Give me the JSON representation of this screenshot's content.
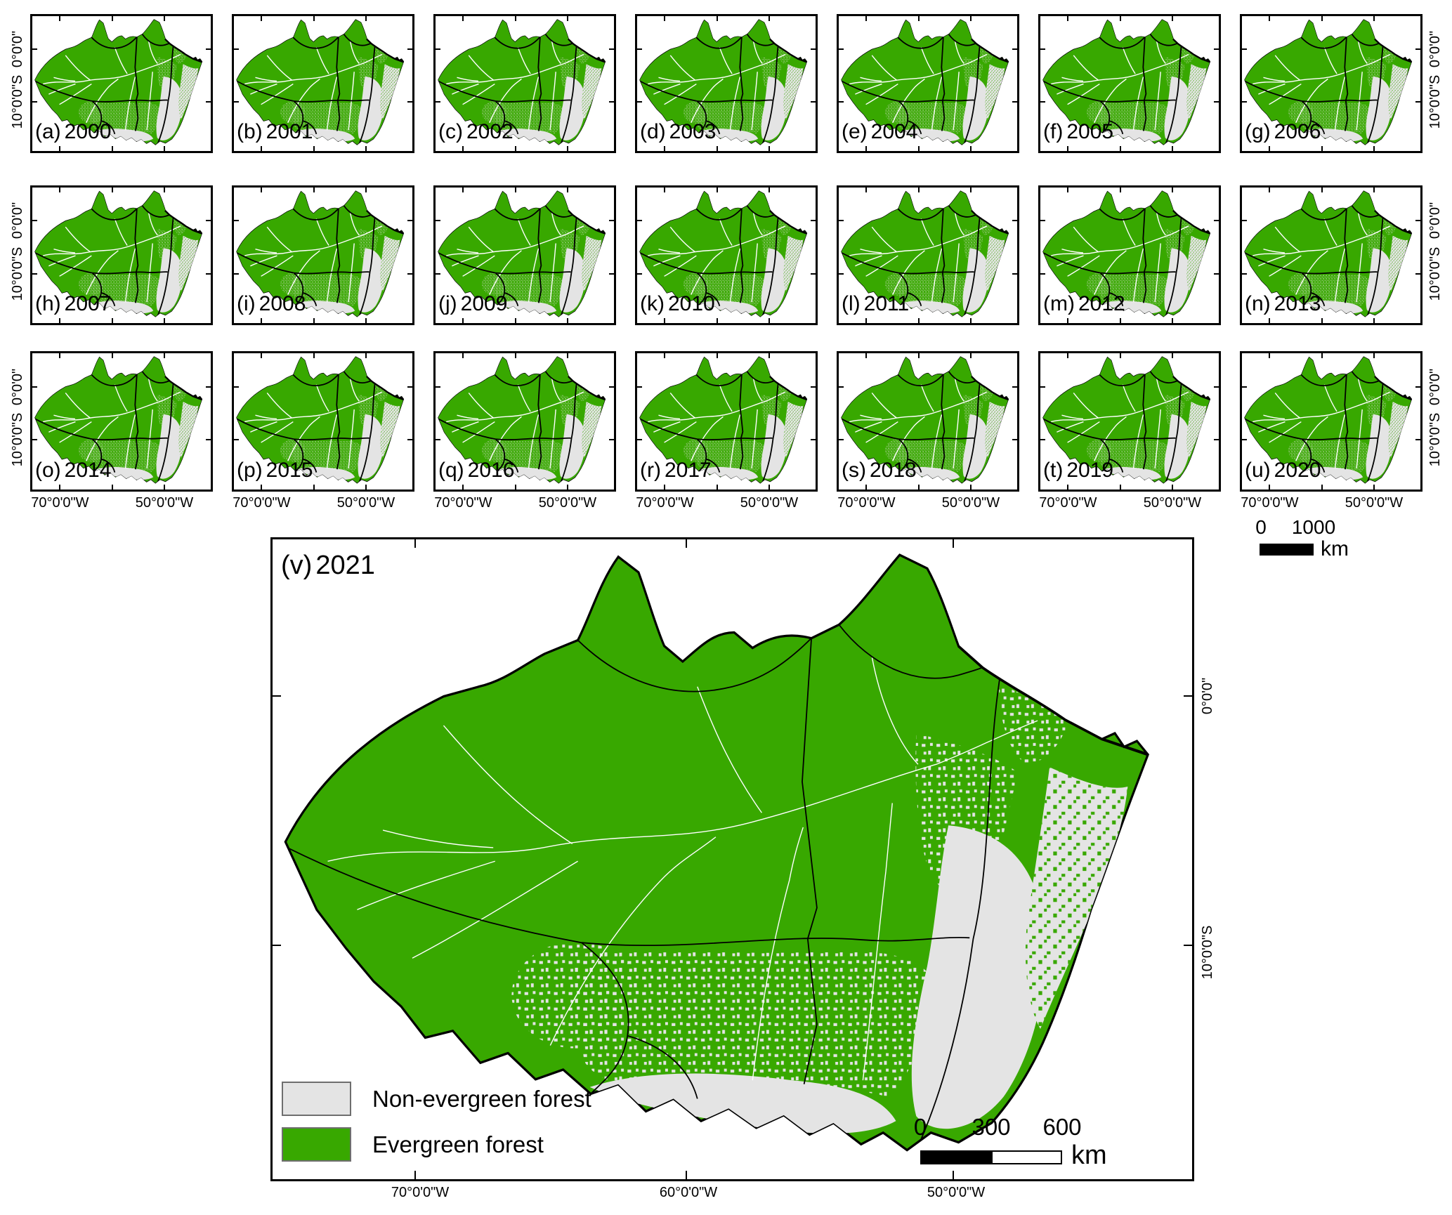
{
  "figure": {
    "panels": [
      {
        "letter": "(a)",
        "year": "2000"
      },
      {
        "letter": "(b)",
        "year": "2001"
      },
      {
        "letter": "(c)",
        "year": "2002"
      },
      {
        "letter": "(d)",
        "year": "2003"
      },
      {
        "letter": "(e)",
        "year": "2004"
      },
      {
        "letter": "(f)",
        "year": "2005"
      },
      {
        "letter": "(g)",
        "year": "2006"
      },
      {
        "letter": "(h)",
        "year": "2007"
      },
      {
        "letter": "(i)",
        "year": "2008"
      },
      {
        "letter": "(j)",
        "year": "2009"
      },
      {
        "letter": "(k)",
        "year": "2010"
      },
      {
        "letter": "(l)",
        "year": "2011"
      },
      {
        "letter": "(m)",
        "year": "2012"
      },
      {
        "letter": "(n)",
        "year": "2013"
      },
      {
        "letter": "(o)",
        "year": "2014"
      },
      {
        "letter": "(p)",
        "year": "2015"
      },
      {
        "letter": "(q)",
        "year": "2016"
      },
      {
        "letter": "(r)",
        "year": "2017"
      },
      {
        "letter": "(s)",
        "year": "2018"
      },
      {
        "letter": "(t)",
        "year": "2019"
      },
      {
        "letter": "(u)",
        "year": "2020"
      }
    ],
    "main_panel": {
      "letter": "(v)",
      "year": "2021"
    },
    "axis": {
      "lat_top": "0°0'0\"",
      "lat_bottom": "10°0'0\"S",
      "lon_left": "70°0'0\"W",
      "lon_mid": "60°0'0\"W",
      "lon_right": "50°0'0\"W"
    },
    "legend": {
      "items": [
        {
          "label": "Non-evergreen forest",
          "color": "#E4E4E4"
        },
        {
          "label": "Evergreen forest",
          "color": "#38A800"
        }
      ]
    },
    "scalebar_small": {
      "ticks": [
        "0",
        "1000"
      ],
      "unit": "km"
    },
    "scalebar_large": {
      "ticks": [
        "0",
        "300",
        "600"
      ],
      "unit": "km"
    },
    "colors": {
      "evergreen": "#38A800",
      "non_evergreen": "#E4E4E4",
      "boundary": "#000000",
      "river": "#FFFFFF"
    }
  }
}
